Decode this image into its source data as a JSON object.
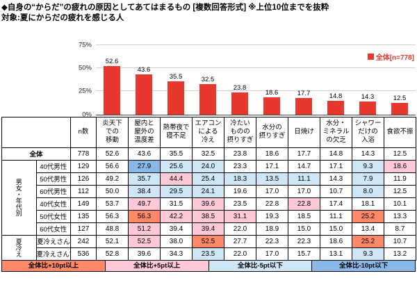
{
  "title": "◆自身の“からだ”の疲れの原因としてあてはまるもの [複数回答形式] ※上位10位までを抜粋",
  "subtitle": "対象:夏にからだの疲れを感じる人",
  "colors": {
    "bar": "#e8382d",
    "plus10": "#ff8968",
    "plus5": "#ffc9d8",
    "minus5": "#cfe6f7",
    "minus10": "#8ab9e8"
  },
  "chart": {
    "legend_label": "全体[n=778]",
    "y_ticks": [
      {
        "label": "75%",
        "value": 75
      },
      {
        "label": "50%",
        "value": 50
      },
      {
        "label": "25%",
        "value": 25
      },
      {
        "label": "0%",
        "value": 0
      }
    ]
  },
  "chart_data": {
    "type": "bar",
    "title": "自身の“からだ”の疲れの原因としてあてはまるもの(複数回答形式・上位10位)",
    "categories": [
      "炎天下での移動",
      "屋内と屋外の温度差",
      "熱帯夜で寝不足",
      "エアコンによる冷え",
      "冷たいものの摂りすぎ",
      "水分の摂りすぎ",
      "日焼け",
      "水分・ミネラルの欠乏",
      "シャワーだけの入浴",
      "食欲不振"
    ],
    "values": [
      52.6,
      43.6,
      35.5,
      32.5,
      23.8,
      18.6,
      17.7,
      14.8,
      14.3,
      12.5
    ],
    "xlabel": "",
    "ylabel": "%",
    "ylim": [
      0,
      75
    ],
    "grid": true,
    "legend": "全体[n=778]",
    "legend_position": "top-right"
  },
  "table": {
    "corner_header": "n数",
    "col_headers": [
      [
        "炎天下",
        "での",
        "移動"
      ],
      [
        "屋内と",
        "屋外の",
        "温度差"
      ],
      [
        "熱帯夜で",
        "寝不足"
      ],
      [
        "エアコン",
        "による",
        "冷え"
      ],
      [
        "冷たい",
        "ものの",
        "摂りすぎ"
      ],
      [
        "水分の",
        "摂りすぎ"
      ],
      [
        "日焼け"
      ],
      [
        "水分・",
        "ミネラル",
        "の欠乏"
      ],
      [
        "シャワー",
        "だけの",
        "入浴"
      ],
      [
        "食欲不振"
      ]
    ],
    "groups": [
      {
        "label": "男女・年代別",
        "start": 1,
        "span": 6
      },
      {
        "label": "夏冷え",
        "start": 7,
        "span": 2
      }
    ],
    "rows": [
      {
        "label": "全体",
        "n": "778",
        "values": [
          52.6,
          43.6,
          35.5,
          32.5,
          23.8,
          18.6,
          17.7,
          14.8,
          14.3,
          12.5
        ]
      },
      {
        "label": "40代男性",
        "n": "129",
        "values": [
          56.6,
          27.9,
          25.6,
          24.0,
          23.3,
          17.1,
          14.7,
          17.1,
          9.3,
          18.6
        ]
      },
      {
        "label": "50代男性",
        "n": "126",
        "values": [
          49.2,
          35.7,
          44.4,
          25.4,
          18.3,
          13.5,
          11.1,
          14.3,
          7.9,
          11.9
        ]
      },
      {
        "label": "60代男性",
        "n": "112",
        "values": [
          50.0,
          38.4,
          29.5,
          24.1,
          19.6,
          17.0,
          17.0,
          10.7,
          8.0,
          12.5
        ]
      },
      {
        "label": "40代女性",
        "n": "149",
        "values": [
          53.7,
          49.7,
          31.5,
          39.6,
          23.5,
          22.8,
          22.8,
          17.4,
          18.1,
          10.1
        ]
      },
      {
        "label": "50代女性",
        "n": "135",
        "values": [
          56.3,
          56.3,
          42.2,
          38.5,
          31.1,
          19.3,
          18.5,
          11.1,
          25.2,
          13.3
        ]
      },
      {
        "label": "60代女性",
        "n": "127",
        "values": [
          48.8,
          51.2,
          39.4,
          39.4,
          22.0,
          18.9,
          15.0,
          15.0,
          13.4,
          8.7
        ]
      },
      {
        "label": "夏冷えさん",
        "n": "242",
        "values": [
          52.1,
          52.5,
          38.0,
          52.5,
          27.7,
          22.3,
          22.3,
          18.6,
          25.2,
          10.7
        ]
      },
      {
        "label": "夏冷えさんではない",
        "n": "536",
        "values": [
          52.8,
          39.6,
          34.3,
          23.5,
          22.0,
          17.0,
          15.7,
          13.1,
          9.3,
          13.2
        ]
      }
    ],
    "legend_cells": [
      {
        "label": "全体比+10pt以上",
        "color": "#ff8968"
      },
      {
        "label": "全体比+5pt以上",
        "color": "#ffc9d8"
      },
      {
        "label": "全体比-5pt以下",
        "color": "#cfe6f7"
      },
      {
        "label": "全体比-10pt以下",
        "color": "#8ab9e8"
      }
    ]
  }
}
